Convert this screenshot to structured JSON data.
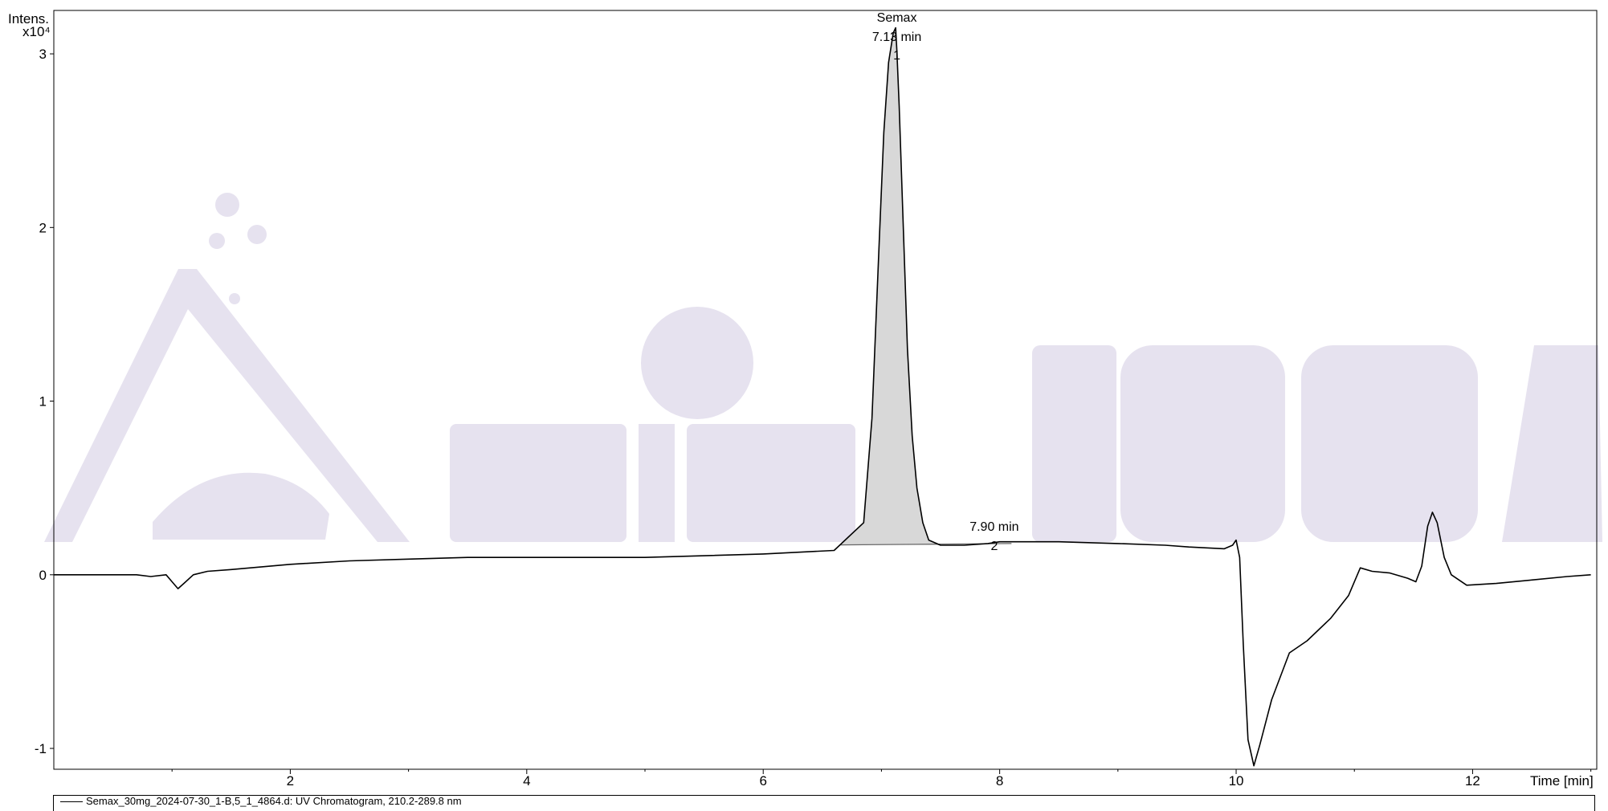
{
  "chart_data": {
    "type": "line",
    "title": "",
    "ylabel": "Intens.",
    "yscale_label": "x10⁴",
    "xlabel": "Time [min]",
    "xlim": [
      0.0,
      13.05
    ],
    "ylim": [
      -1.12,
      3.25
    ],
    "x_ticks": [
      2,
      4,
      6,
      8,
      10,
      12
    ],
    "y_ticks": [
      -1,
      0,
      1,
      2,
      3
    ],
    "grid": false,
    "legend_position": "bottom",
    "series": [
      {
        "name": "Semax_30mg_2024-07-30_1-B,5_1_4864.d: UV Chromatogram, 210.2-289.8 nm",
        "x": [
          0.0,
          0.7,
          0.82,
          0.95,
          1.0,
          1.05,
          1.1,
          1.18,
          1.3,
          1.5,
          2.0,
          2.5,
          3.0,
          3.5,
          4.0,
          5.0,
          6.0,
          6.6,
          6.85,
          6.92,
          6.98,
          7.02,
          7.06,
          7.1,
          7.12,
          7.13,
          7.15,
          7.18,
          7.22,
          7.26,
          7.3,
          7.35,
          7.4,
          7.5,
          7.7,
          7.9,
          8.0,
          8.5,
          9.0,
          9.4,
          9.6,
          9.9,
          9.97,
          10.0,
          10.03,
          10.06,
          10.1,
          10.15,
          10.2,
          10.3,
          10.45,
          10.6,
          10.8,
          10.95,
          11.05,
          11.15,
          11.3,
          11.45,
          11.52,
          11.57,
          11.62,
          11.66,
          11.7,
          11.76,
          11.82,
          11.95,
          12.2,
          12.5,
          12.8,
          13.0
        ],
        "y": [
          0.0,
          0.0,
          -0.01,
          0.0,
          -0.04,
          -0.08,
          -0.05,
          0.0,
          0.02,
          0.03,
          0.06,
          0.08,
          0.09,
          0.1,
          0.1,
          0.1,
          0.12,
          0.14,
          0.3,
          0.9,
          1.9,
          2.55,
          2.95,
          3.12,
          3.15,
          3.02,
          2.7,
          2.1,
          1.3,
          0.8,
          0.5,
          0.3,
          0.2,
          0.17,
          0.17,
          0.18,
          0.19,
          0.19,
          0.18,
          0.17,
          0.16,
          0.15,
          0.17,
          0.2,
          0.1,
          -0.4,
          -0.95,
          -1.1,
          -0.98,
          -0.72,
          -0.45,
          -0.38,
          -0.25,
          -0.12,
          0.04,
          0.02,
          0.01,
          -0.02,
          -0.04,
          0.05,
          0.28,
          0.36,
          0.3,
          0.1,
          0.0,
          -0.06,
          -0.05,
          -0.03,
          -0.01,
          0.0
        ]
      }
    ],
    "peaks": [
      {
        "number": "1",
        "name": "Semax",
        "rt_label": "7.13 min",
        "x": 7.13,
        "y": 3.15,
        "start": 6.65,
        "end": 7.55
      },
      {
        "number": "2",
        "name": "",
        "rt_label": "7.90 min",
        "x": 7.9,
        "y": 0.18
      }
    ],
    "watermark": "Amino USA",
    "colors": {
      "trace": "#000000",
      "peak_fill": "#d8d8d8",
      "baseline": "#666666",
      "watermark": "#e6e2ef"
    }
  }
}
